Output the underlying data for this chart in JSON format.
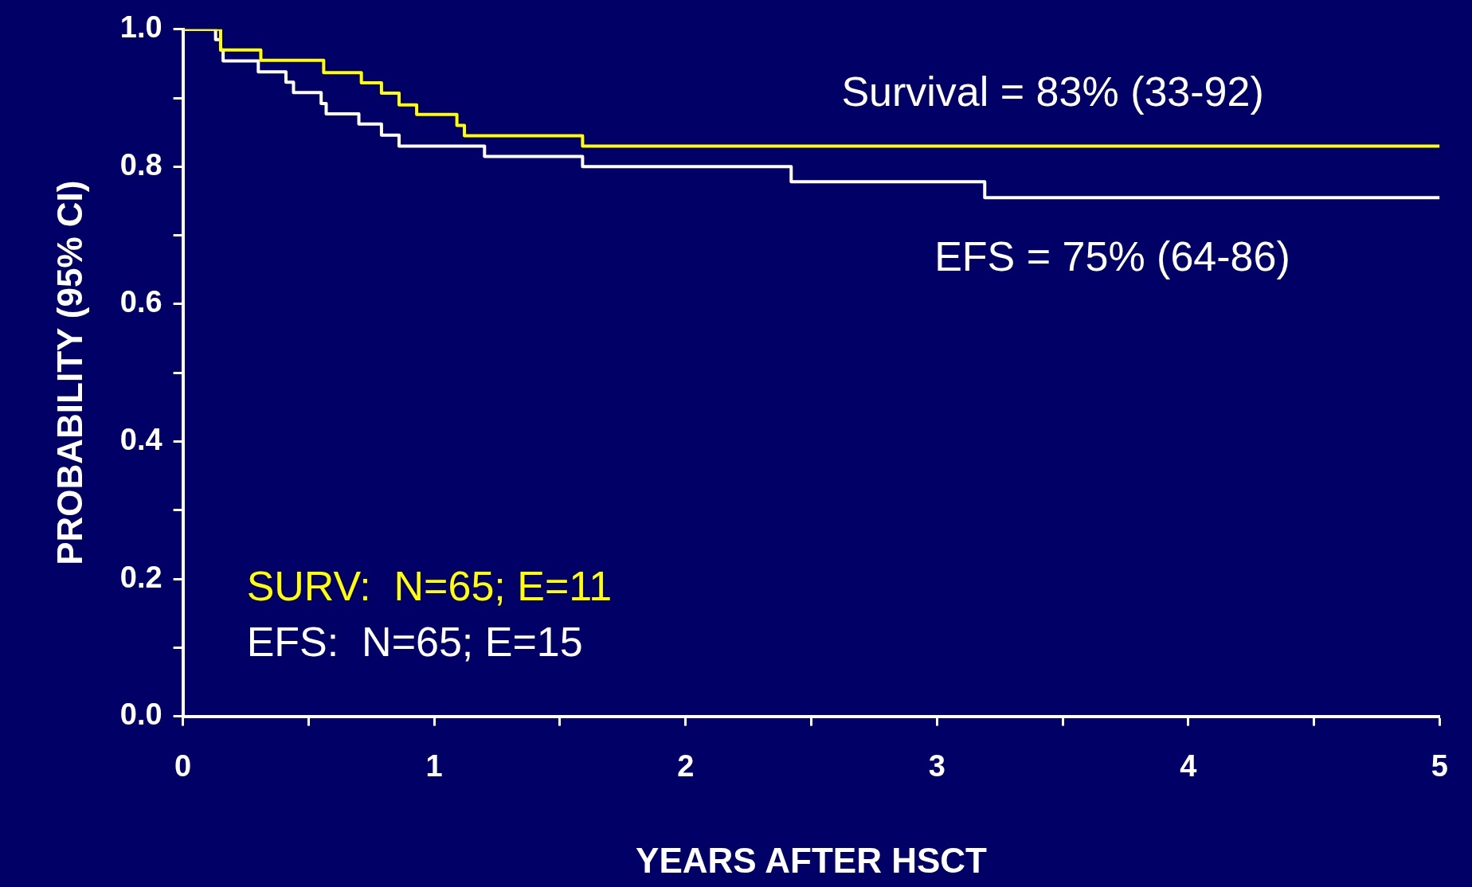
{
  "chart_data": {
    "type": "step",
    "xlabel": "YEARS AFTER HSCT",
    "ylabel": "PROBABILITY (95% CI)",
    "xlim": [
      0,
      5
    ],
    "xticks": [
      0,
      {
        "value": 0.5,
        "label": null
      },
      1,
      {
        "value": 1.5,
        "label": null
      },
      2,
      {
        "value": 2.5,
        "label": null
      },
      3,
      {
        "value": 3.5,
        "label": null
      },
      4,
      {
        "value": 4.5,
        "label": null
      },
      5
    ],
    "ylim": [
      0,
      1
    ],
    "yticks": [
      {
        "value": 0,
        "label": "0.0"
      },
      {
        "value": 0.1,
        "label": null
      },
      0.2,
      {
        "value": 0.3,
        "label": null
      },
      0.4,
      {
        "value": 0.5,
        "label": null
      },
      0.6,
      {
        "value": 0.7,
        "label": null
      },
      0.8,
      {
        "value": 0.9,
        "label": null
      },
      {
        "value": 1,
        "label": "1.0"
      }
    ],
    "grid": false,
    "legend": "bottom left",
    "marker": "none",
    "line_style": "solid",
    "annotations": [
      "Survival = 83% (33-92)",
      "EFS = 75% (64-86)"
    ],
    "series": [
      {
        "name": "SURV:  N=65; E=11",
        "color": "#ffff00",
        "x": [
          0,
          0.13,
          0.15,
          0.31,
          0.56,
          0.71,
          0.79,
          0.86,
          0.93,
          1.09,
          1.12,
          1.59,
          5
        ],
        "values": [
          1,
          1,
          0.97,
          0.955,
          0.937,
          0.922,
          0.907,
          0.89,
          0.876,
          0.86,
          0.845,
          0.83,
          0.83
        ]
      },
      {
        "name": "EFS:  N=65; E=15",
        "color": "#ffffff",
        "x": [
          0,
          0.13,
          0.15,
          0.16,
          0.3,
          0.41,
          0.44,
          0.55,
          0.57,
          0.7,
          0.79,
          0.86,
          1.2,
          1.59,
          2.42,
          3.19,
          5
        ],
        "values": [
          1,
          0.985,
          0.97,
          0.954,
          0.938,
          0.923,
          0.908,
          0.892,
          0.877,
          0.862,
          0.846,
          0.83,
          0.815,
          0.8,
          0.778,
          0.755,
          0.755
        ]
      }
    ]
  }
}
